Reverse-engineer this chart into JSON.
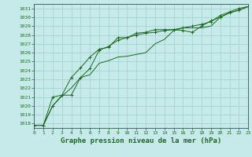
{
  "title": "Graphe pression niveau de la mer (hPa)",
  "xlim": [
    0,
    23
  ],
  "ylim": [
    1017.5,
    1031.5
  ],
  "yticks": [
    1018,
    1019,
    1020,
    1021,
    1022,
    1023,
    1024,
    1025,
    1026,
    1027,
    1028,
    1029,
    1030,
    1031
  ],
  "xticks": [
    0,
    1,
    2,
    3,
    4,
    5,
    6,
    7,
    8,
    9,
    10,
    11,
    12,
    13,
    14,
    15,
    16,
    17,
    18,
    19,
    20,
    21,
    22,
    23
  ],
  "background_color": "#c6eaea",
  "grid_color": "#9ecece",
  "line_color": "#1a6b1a",
  "series": [
    [
      1017.8,
      1017.8,
      1020.0,
      1021.2,
      1021.2,
      1023.2,
      1024.2,
      1026.3,
      1026.7,
      1027.4,
      1027.7,
      1028.0,
      1028.2,
      1028.3,
      1028.5,
      1028.6,
      1028.5,
      1028.3,
      1029.0,
      1029.6,
      1030.0,
      1030.5,
      1030.8,
      1031.2
    ],
    [
      1017.8,
      1017.8,
      1020.0,
      1021.1,
      1022.0,
      1023.2,
      1023.5,
      1024.8,
      1025.1,
      1025.5,
      1025.6,
      1025.8,
      1026.0,
      1027.0,
      1027.5,
      1028.5,
      1028.8,
      1028.8,
      1028.8,
      1029.0,
      1030.0,
      1030.5,
      1030.8,
      1031.2
    ],
    [
      1017.8,
      1017.8,
      1021.0,
      1021.2,
      1023.2,
      1024.3,
      1025.5,
      1026.4,
      1026.6,
      1027.7,
      1027.7,
      1028.2,
      1028.3,
      1028.6,
      1028.6,
      1028.6,
      1028.8,
      1029.0,
      1029.2,
      1029.5,
      1030.2,
      1030.6,
      1031.0,
      1031.2
    ]
  ],
  "marker_series": [
    0,
    2
  ],
  "title_fontsize": 6.5,
  "tick_fontsize": 4.5
}
